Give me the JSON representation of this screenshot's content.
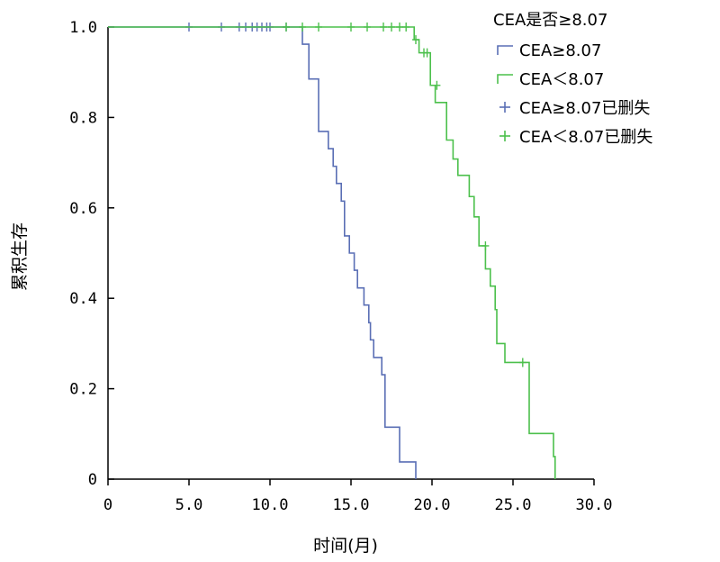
{
  "chart_data": {
    "type": "line",
    "subtype": "kaplan-meier",
    "xlabel": "时间(月)",
    "ylabel": "累积生存",
    "xlim": [
      0,
      30
    ],
    "ylim": [
      0,
      1
    ],
    "x_ticks": [
      "0",
      "5.0",
      "10.0",
      "15.0",
      "20.0",
      "25.0",
      "30.0"
    ],
    "y_ticks": [
      "0",
      "0.2",
      "0.4",
      "0.6",
      "0.8",
      "1.0"
    ],
    "grid": false,
    "legend_position": "top-right",
    "legend": {
      "title": "CEA是否≥8.07",
      "entries": [
        "CEA≥8.07",
        "CEA＜8.07",
        "CEA≥8.07已删失",
        "CEA＜8.07已删失"
      ]
    },
    "series": [
      {
        "name": "CEA≥8.07",
        "color": "#5a6fb5",
        "steps": [
          [
            0,
            1.0
          ],
          [
            12.0,
            0.962
          ],
          [
            12.4,
            0.885
          ],
          [
            13.0,
            0.769
          ],
          [
            13.6,
            0.731
          ],
          [
            13.9,
            0.692
          ],
          [
            14.1,
            0.654
          ],
          [
            14.4,
            0.615
          ],
          [
            14.6,
            0.538
          ],
          [
            14.9,
            0.5
          ],
          [
            15.2,
            0.462
          ],
          [
            15.4,
            0.423
          ],
          [
            15.8,
            0.385
          ],
          [
            16.1,
            0.346
          ],
          [
            16.2,
            0.308
          ],
          [
            16.4,
            0.269
          ],
          [
            16.9,
            0.231
          ],
          [
            17.1,
            0.115
          ],
          [
            18.0,
            0.038
          ],
          [
            19.0,
            0.0
          ]
        ],
        "censored": [
          [
            5.0,
            1.0
          ],
          [
            7.0,
            1.0
          ],
          [
            8.1,
            1.0
          ],
          [
            8.5,
            1.0
          ],
          [
            8.9,
            1.0
          ],
          [
            9.2,
            1.0
          ],
          [
            9.5,
            1.0
          ],
          [
            9.8,
            1.0
          ],
          [
            10.0,
            1.0
          ],
          [
            11.0,
            1.0
          ]
        ]
      },
      {
        "name": "CEA＜8.07",
        "color": "#4cc04c",
        "steps": [
          [
            0,
            1.0
          ],
          [
            18.9,
            0.972
          ],
          [
            19.2,
            0.943
          ],
          [
            19.9,
            0.871
          ],
          [
            20.2,
            0.833
          ],
          [
            20.9,
            0.75
          ],
          [
            21.3,
            0.708
          ],
          [
            21.6,
            0.672
          ],
          [
            22.3,
            0.625
          ],
          [
            22.6,
            0.58
          ],
          [
            22.9,
            0.516
          ],
          [
            23.3,
            0.465
          ],
          [
            23.6,
            0.427
          ],
          [
            23.9,
            0.375
          ],
          [
            24.0,
            0.3
          ],
          [
            24.5,
            0.258
          ],
          [
            26.0,
            0.101
          ],
          [
            27.5,
            0.05
          ],
          [
            27.6,
            0.0
          ]
        ],
        "censored": [
          [
            11.0,
            1.0
          ],
          [
            12.0,
            1.0
          ],
          [
            13.0,
            1.0
          ],
          [
            15.0,
            1.0
          ],
          [
            16.0,
            1.0
          ],
          [
            17.0,
            1.0
          ],
          [
            17.5,
            1.0
          ],
          [
            18.0,
            1.0
          ],
          [
            18.4,
            1.0
          ],
          [
            19.0,
            0.972
          ],
          [
            19.5,
            0.943
          ],
          [
            19.7,
            0.943
          ],
          [
            20.3,
            0.871
          ],
          [
            23.3,
            0.516
          ],
          [
            25.6,
            0.258
          ]
        ]
      }
    ]
  }
}
